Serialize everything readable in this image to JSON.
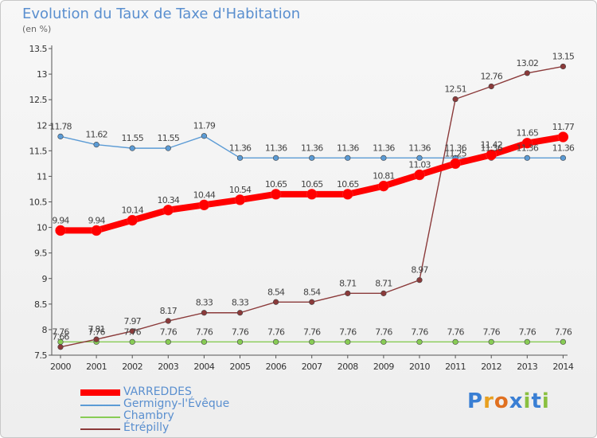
{
  "title": "Evolution du Taux de Taxe d'Habitation",
  "unit_label": "(en %)",
  "logo": {
    "text": "Proxiti",
    "letters": [
      "P",
      "r",
      "o",
      "x",
      "i",
      "t",
      "i"
    ],
    "colors": [
      "#3a7fd4",
      "#e8a020",
      "#e07020",
      "#3a7fd4",
      "#8ac040",
      "#3a7fd4",
      "#8ac040"
    ]
  },
  "chart_data": {
    "type": "line",
    "x": [
      "2000",
      "2001",
      "2002",
      "2003",
      "2004",
      "2005",
      "2006",
      "2007",
      "2008",
      "2009",
      "2010",
      "2011",
      "2012",
      "2013",
      "2014"
    ],
    "ylim": [
      7.5,
      13.5
    ],
    "yticks": [
      "7.5",
      "8",
      "8.5",
      "9",
      "9.5",
      "10",
      "10.5",
      "11",
      "11.5",
      "12",
      "12.5",
      "13",
      "13.5"
    ],
    "grid": false,
    "legend_position": "bottom-left",
    "series": [
      {
        "name": "VARREDDES",
        "color": "#ff0000",
        "values": [
          9.94,
          9.94,
          10.14,
          10.34,
          10.44,
          10.54,
          10.65,
          10.65,
          10.65,
          10.81,
          11.03,
          11.25,
          11.42,
          11.65,
          11.77
        ],
        "labels": [
          "9.94",
          "9.94",
          "10.14",
          "10.34",
          "10.44",
          "10.54",
          "10.65",
          "10.65",
          "10.65",
          "10.81",
          "11.03",
          "11.25",
          "11.42",
          "11.65",
          "11.77"
        ]
      },
      {
        "name": "Germigny-l'Évêque",
        "color": "#5b9bd5",
        "values": [
          11.78,
          11.62,
          11.55,
          11.55,
          11.79,
          11.36,
          11.36,
          11.36,
          11.36,
          11.36,
          11.36,
          11.36,
          11.36,
          11.36,
          11.36
        ],
        "labels": [
          "11.78",
          "11.62",
          "11.55",
          "11.55",
          "11.79",
          "11.36",
          "11.36",
          "11.36",
          "11.36",
          "11.36",
          "11.36",
          "11.36",
          "11.36",
          "11.36",
          "11.36"
        ]
      },
      {
        "name": "Chambry",
        "color": "#88cc55",
        "values": [
          7.76,
          7.76,
          7.76,
          7.76,
          7.76,
          7.76,
          7.76,
          7.76,
          7.76,
          7.76,
          7.76,
          7.76,
          7.76,
          7.76,
          7.76
        ],
        "labels": [
          "7.76",
          "7.76",
          "7.76",
          "7.76",
          "7.76",
          "7.76",
          "7.76",
          "7.76",
          "7.76",
          "7.76",
          "7.76",
          "7.76",
          "7.76",
          "7.76",
          "7.76"
        ]
      },
      {
        "name": "Étrépilly",
        "color": "#8b3a3a",
        "values": [
          7.66,
          7.81,
          7.97,
          8.17,
          8.33,
          8.33,
          8.54,
          8.54,
          8.71,
          8.71,
          8.97,
          12.51,
          12.76,
          13.02,
          13.15
        ],
        "labels": [
          "7.66",
          "7.81",
          "7.97",
          "8.17",
          "8.33",
          "8.33",
          "8.54",
          "8.54",
          "8.71",
          "8.71",
          "8.97",
          "12.51",
          "12.76",
          "13.02",
          "13.15"
        ]
      }
    ]
  }
}
